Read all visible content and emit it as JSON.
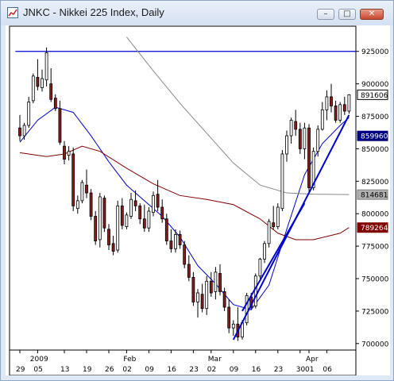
{
  "window": {
    "title": "JNKC - Nikkei 225 Index, Daily",
    "icons": [
      "chart-app-icon",
      "minimize-icon",
      "maximize-icon",
      "close-icon"
    ]
  },
  "chart_data": {
    "type": "candlestick",
    "ylim": [
      6950,
      9450
    ],
    "y_ticks": [
      {
        "value": 9250,
        "label": "925000"
      },
      {
        "value": 9000,
        "label": "900000"
      },
      {
        "value": 8750,
        "label": "875000"
      },
      {
        "value": 8500,
        "label": "850000"
      },
      {
        "value": 8250,
        "label": "825000"
      },
      {
        "value": 8000,
        "label": "800000"
      },
      {
        "value": 7750,
        "label": "775000"
      },
      {
        "value": 7500,
        "label": "750000"
      },
      {
        "value": 7250,
        "label": "725000"
      },
      {
        "value": 7000,
        "label": "700000"
      }
    ],
    "price_tags": [
      {
        "value": 8916,
        "label": "891606",
        "style": "white"
      },
      {
        "value": 8599,
        "label": "859960",
        "style": "navy"
      },
      {
        "value": 8147,
        "label": "814681",
        "style": "gray"
      },
      {
        "value": 7893,
        "label": "789264",
        "style": "maroon"
      }
    ],
    "x_day_labels": [
      "29",
      "05",
      "13",
      "19",
      "26",
      "02",
      "09",
      "16",
      "23",
      "02",
      "09",
      "16",
      "23",
      "30",
      "01",
      "06"
    ],
    "x_day_label_index": [
      0,
      4,
      10,
      15,
      20,
      24,
      29,
      34,
      39,
      43,
      48,
      53,
      58,
      63,
      65,
      69
    ],
    "x_month_labels": [
      "2009",
      "Feb",
      "Mar",
      "Apr"
    ],
    "x_month_label_index": [
      3,
      24,
      43,
      65
    ],
    "candles": [
      [
        8660,
        8760,
        8560,
        8600
      ],
      [
        8600,
        8700,
        8570,
        8680
      ],
      [
        8680,
        8900,
        8660,
        8860
      ],
      [
        8870,
        9080,
        8850,
        9060
      ],
      [
        9050,
        9190,
        8950,
        8980
      ],
      [
        8970,
        9110,
        8940,
        9040
      ],
      [
        9030,
        9280,
        8980,
        9240
      ],
      [
        9000,
        9120,
        8860,
        8880
      ],
      [
        8890,
        8920,
        8790,
        8810
      ],
      [
        8810,
        8870,
        8530,
        8550
      ],
      [
        8520,
        8560,
        8380,
        8420
      ],
      [
        8450,
        8520,
        8410,
        8480
      ],
      [
        8460,
        8510,
        8020,
        8060
      ],
      [
        8040,
        8140,
        8000,
        8100
      ],
      [
        8100,
        8260,
        8080,
        8240
      ],
      [
        8220,
        8340,
        8120,
        8160
      ],
      [
        8160,
        8190,
        7950,
        7980
      ],
      [
        7980,
        8020,
        7760,
        7790
      ],
      [
        7800,
        8160,
        7740,
        8130
      ],
      [
        8120,
        8140,
        7860,
        7890
      ],
      [
        7880,
        7920,
        7720,
        7760
      ],
      [
        7770,
        7830,
        7680,
        7710
      ],
      [
        7720,
        8100,
        7700,
        8060
      ],
      [
        8060,
        8120,
        7880,
        7910
      ],
      [
        7900,
        8010,
        7880,
        7990
      ],
      [
        7980,
        8160,
        7960,
        8110
      ],
      [
        8100,
        8180,
        8020,
        8060
      ],
      [
        8060,
        8080,
        7920,
        7960
      ],
      [
        7960,
        8070,
        7860,
        7890
      ],
      [
        7890,
        8050,
        7860,
        8020
      ],
      [
        8010,
        8170,
        7980,
        8140
      ],
      [
        8150,
        8260,
        8020,
        8050
      ],
      [
        8050,
        8110,
        7930,
        7960
      ],
      [
        7960,
        8000,
        7760,
        7790
      ],
      [
        7790,
        7880,
        7700,
        7730
      ],
      [
        7730,
        7880,
        7700,
        7840
      ],
      [
        7840,
        7870,
        7730,
        7760
      ],
      [
        7760,
        7790,
        7580,
        7610
      ],
      [
        7610,
        7680,
        7480,
        7510
      ],
      [
        7510,
        7550,
        7290,
        7320
      ],
      [
        7320,
        7420,
        7200,
        7390
      ],
      [
        7380,
        7460,
        7240,
        7270
      ],
      [
        7270,
        7520,
        7220,
        7480
      ],
      [
        7480,
        7550,
        7360,
        7390
      ],
      [
        7400,
        7590,
        7340,
        7550
      ],
      [
        7540,
        7610,
        7370,
        7400
      ],
      [
        7400,
        7430,
        7250,
        7280
      ],
      [
        7280,
        7340,
        7080,
        7120
      ],
      [
        7120,
        7180,
        7060,
        7150
      ],
      [
        7150,
        7280,
        7020,
        7050
      ],
      [
        7050,
        7180,
        7030,
        7160
      ],
      [
        7160,
        7390,
        7140,
        7370
      ],
      [
        7360,
        7390,
        7260,
        7280
      ],
      [
        7290,
        7540,
        7270,
        7520
      ],
      [
        7520,
        7660,
        7500,
        7650
      ],
      [
        7650,
        7790,
        7620,
        7770
      ],
      [
        7770,
        7960,
        7740,
        7940
      ],
      [
        7930,
        8060,
        7880,
        7900
      ],
      [
        7900,
        8080,
        7880,
        8050
      ],
      [
        8040,
        8490,
        8020,
        8460
      ],
      [
        8460,
        8640,
        8400,
        8600
      ],
      [
        8600,
        8740,
        8540,
        8720
      ],
      [
        8710,
        8800,
        8600,
        8650
      ],
      [
        8650,
        8700,
        8460,
        8500
      ],
      [
        8500,
        8700,
        8420,
        8660
      ],
      [
        8660,
        8690,
        8160,
        8200
      ],
      [
        8200,
        8510,
        8180,
        8480
      ],
      [
        8480,
        8680,
        8440,
        8650
      ],
      [
        8650,
        8860,
        8640,
        8800
      ],
      [
        8800,
        8950,
        8720,
        8900
      ],
      [
        8900,
        9000,
        8780,
        8830
      ],
      [
        8830,
        8870,
        8700,
        8720
      ],
      [
        8720,
        8860,
        8700,
        8840
      ],
      [
        8840,
        8900,
        8760,
        8790
      ],
      [
        8790,
        8920,
        8770,
        8916
      ]
    ],
    "lines": [
      {
        "name": "",
        "color": "#0000cc",
        "points": [
          [
            0,
            8550
          ],
          [
            4,
            8720
          ],
          [
            8,
            8820
          ],
          [
            12,
            8780
          ],
          [
            16,
            8600
          ],
          [
            20,
            8400
          ],
          [
            24,
            8220
          ],
          [
            28,
            8100
          ],
          [
            32,
            7980
          ],
          [
            36,
            7820
          ],
          [
            40,
            7600
          ],
          [
            44,
            7460
          ],
          [
            48,
            7300
          ],
          [
            52,
            7260
          ],
          [
            56,
            7450
          ],
          [
            60,
            7880
          ],
          [
            64,
            8300
          ],
          [
            68,
            8540
          ],
          [
            72,
            8680
          ],
          [
            74,
            8740
          ]
        ]
      },
      {
        "name": "",
        "color": "#800000",
        "points": [
          [
            0,
            8470
          ],
          [
            6,
            8440
          ],
          [
            10,
            8460
          ],
          [
            14,
            8520
          ],
          [
            18,
            8480
          ],
          [
            24,
            8350
          ],
          [
            30,
            8230
          ],
          [
            36,
            8140
          ],
          [
            42,
            8110
          ],
          [
            48,
            8070
          ],
          [
            54,
            7960
          ],
          [
            58,
            7850
          ],
          [
            62,
            7800
          ],
          [
            66,
            7800
          ],
          [
            72,
            7850
          ],
          [
            74,
            7893
          ]
        ]
      },
      {
        "name": "",
        "color": "#888888",
        "points": [
          [
            24,
            9360
          ],
          [
            30,
            9100
          ],
          [
            36,
            8850
          ],
          [
            42,
            8620
          ],
          [
            48,
            8390
          ],
          [
            54,
            8220
          ],
          [
            60,
            8160
          ],
          [
            66,
            8150
          ],
          [
            74,
            8147
          ]
        ]
      }
    ],
    "horizontal_line": {
      "value": 9250,
      "color": "#0000cc"
    },
    "trendlines": [
      {
        "color": "#0000cc",
        "from": [
          48,
          7030
        ],
        "to": [
          74,
          8760
        ]
      },
      {
        "color": "#0000cc",
        "from": [
          50,
          7250
        ],
        "to": [
          64,
          8080
        ]
      }
    ]
  }
}
